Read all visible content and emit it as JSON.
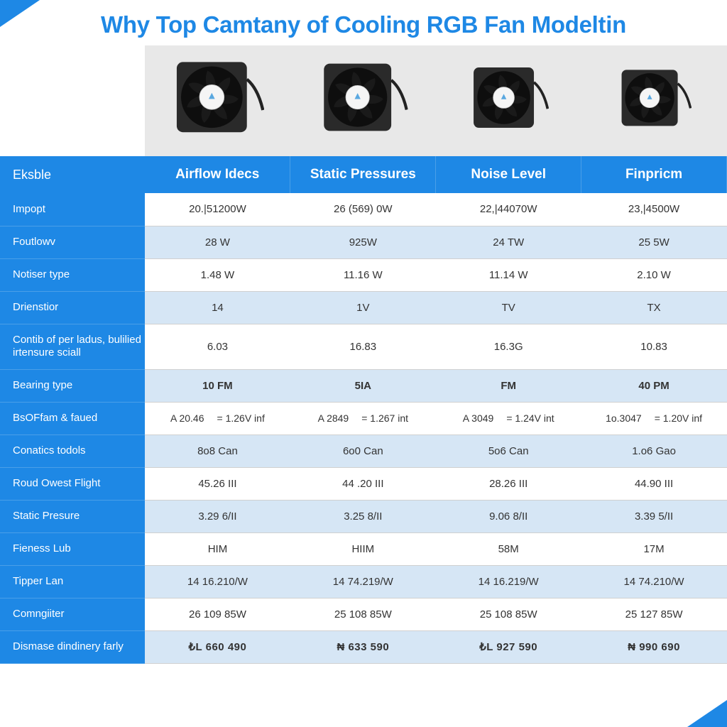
{
  "title": "Why Top Camtany of Cooling RGB Fan Modeltin",
  "columns": [
    {
      "key": "c1",
      "header": "Airflow Idecs"
    },
    {
      "key": "c2",
      "header": "Static Pressures"
    },
    {
      "key": "c3",
      "header": "Noise Level"
    },
    {
      "key": "c4",
      "header": "Finpricm"
    }
  ],
  "label_header": "Eksble",
  "rows": [
    {
      "label": "Impopt",
      "alt": false,
      "tall": false,
      "cells": [
        "20.|51200W",
        "26 (569) 0W",
        "22,|44070W",
        "23,|4500W"
      ]
    },
    {
      "label": "Foutlowv",
      "alt": true,
      "tall": false,
      "cells": [
        "28 W",
        "925W",
        "24 TW",
        "25 5W"
      ]
    },
    {
      "label": "Notiser type",
      "alt": false,
      "tall": false,
      "cells": [
        "1.48 W",
        "11.16 W",
        "11.14 W",
        "2.10 W"
      ]
    },
    {
      "label": "Drienstior",
      "alt": true,
      "tall": false,
      "cells": [
        "14",
        "1V",
        "TV",
        "TX"
      ]
    },
    {
      "label": "Contib of per ladus, bulilied irtensure sciall",
      "alt": false,
      "tall": true,
      "cells": [
        "6.03",
        "16.83",
        "16.3G",
        "10.83"
      ]
    },
    {
      "label": "Bearing type",
      "alt": true,
      "tall": false,
      "bold": true,
      "cells": [
        "10 FM",
        "5IA",
        "FM",
        "40 PM"
      ]
    },
    {
      "label": "BsOFfam & faued",
      "alt": false,
      "tall": false,
      "dual": true,
      "cells": [
        {
          "a": "A 20.46",
          "b": "= 1.26V inf"
        },
        {
          "a": "A 2849",
          "b": "= 1.267 int"
        },
        {
          "a": "A 3049",
          "b": "= 1.24V int"
        },
        {
          "a": "1o.3047",
          "b": "= 1.20V inf"
        }
      ]
    },
    {
      "label": "Conatics todols",
      "alt": true,
      "tall": false,
      "cells": [
        "8o8 Can",
        "6o0 Can",
        "5o6 Can",
        "1.o6 Gao"
      ]
    },
    {
      "label": "Roud Owest Flight",
      "alt": false,
      "tall": false,
      "cells": [
        "45.26 III",
        "44 .20 III",
        "28.26 III",
        "44.90 III"
      ]
    },
    {
      "label": "Static Presure",
      "alt": true,
      "tall": false,
      "cells": [
        "3.29 6/II",
        "3.25 8/II",
        "9.06 8/II",
        "3.39 5/II"
      ]
    },
    {
      "label": "Fieness Lub",
      "alt": false,
      "tall": false,
      "cells": [
        "HIM",
        "HIIM",
        "58M",
        "17M"
      ]
    },
    {
      "label": "Tipper Lan",
      "alt": true,
      "tall": false,
      "cells": [
        "14 16.210/W",
        "14 74.219/W",
        "14 16.219/W",
        "14 74.210/W"
      ]
    },
    {
      "label": "Comngiiter",
      "alt": false,
      "tall": false,
      "cells": [
        "26 109 85W",
        "25 108 85W",
        "25 108 85W",
        "25 127 85W"
      ]
    },
    {
      "label": "Dismase dindinery farly",
      "alt": true,
      "tall": false,
      "price": true,
      "cells": [
        "₺L 660 490",
        "₦ 633 590",
        "₺L 927 590",
        "₦ 990 690"
      ]
    }
  ],
  "fan_colors": {
    "frame": "#2a2a2a",
    "hub": "#f5f5f5",
    "blade": "#1a1a1a",
    "accent": "#5aa8e0"
  }
}
